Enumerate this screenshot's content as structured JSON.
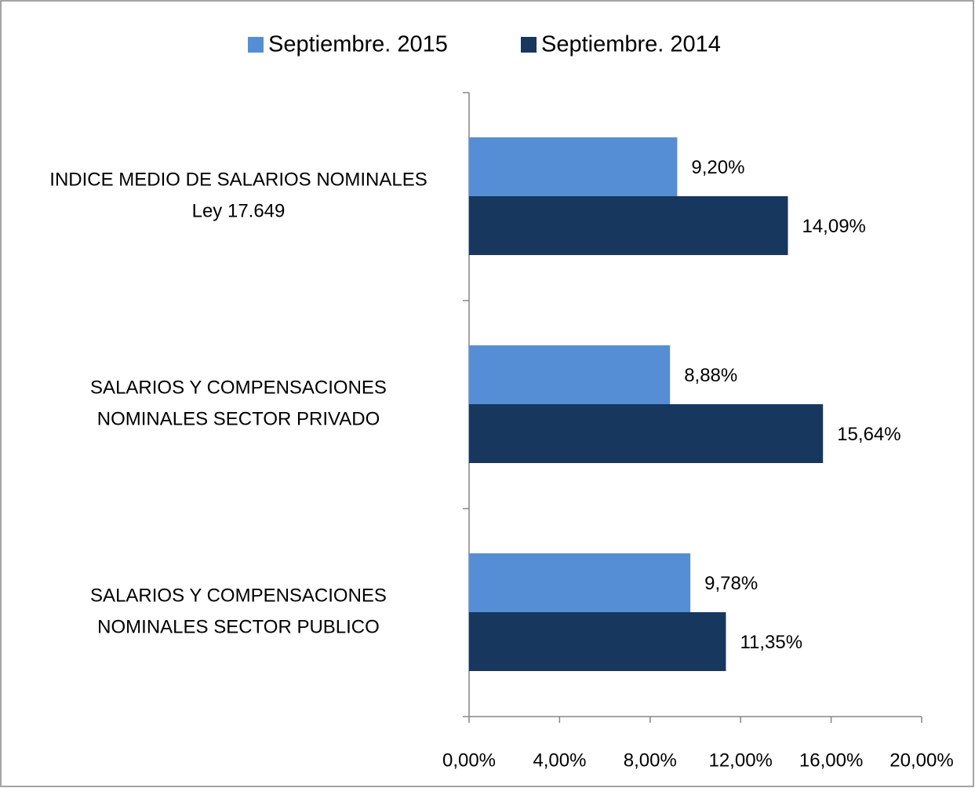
{
  "chart_data": {
    "type": "hbar",
    "categories": [
      [
        "INDICE MEDIO DE SALARIOS NOMINALES",
        "Ley 17.649"
      ],
      [
        "SALARIOS Y COMPENSACIONES",
        "NOMINALES SECTOR PRIVADO"
      ],
      [
        "SALARIOS Y COMPENSACIONES",
        "NOMINALES SECTOR PUBLICO"
      ]
    ],
    "series": [
      {
        "name": "Septiembre. 2015",
        "color": "#558ed5",
        "values": [
          9.2,
          8.88,
          9.78
        ],
        "value_labels": [
          "9,20%",
          "8,88%",
          "9,78%"
        ]
      },
      {
        "name": "Septiembre. 2014",
        "color": "#17375e",
        "values": [
          14.09,
          15.64,
          11.35
        ],
        "value_labels": [
          "14,09%",
          "15,64%",
          "11,35%"
        ]
      }
    ],
    "xlim": [
      0,
      20
    ],
    "xticks": [
      {
        "value": 0,
        "label": "0,00%"
      },
      {
        "value": 4,
        "label": "4,00%"
      },
      {
        "value": 8,
        "label": "8,00%"
      },
      {
        "value": 12,
        "label": "12,00%"
      },
      {
        "value": 16,
        "label": "16,00%"
      },
      {
        "value": 20,
        "label": "20,00%"
      }
    ],
    "legend": "top"
  }
}
